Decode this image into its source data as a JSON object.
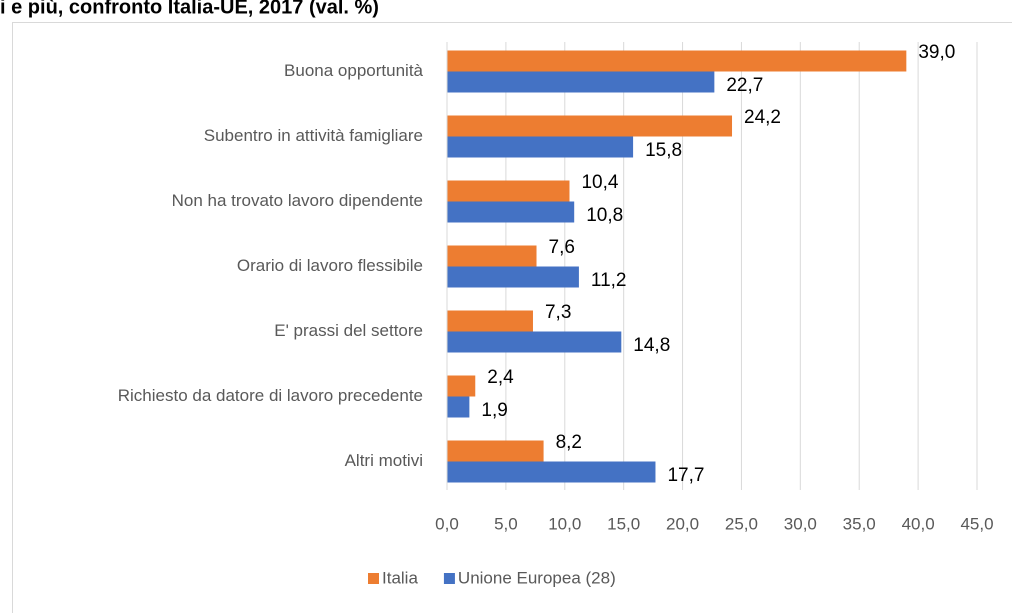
{
  "chart_data": {
    "type": "bar",
    "orientation": "horizontal",
    "title": "i e più, confronto Italia-UE, 2017 (val. %)",
    "categories": [
      "Buona opportunità",
      "Subentro in attività famigliare",
      "Non ha trovato lavoro dipendente",
      "Orario di lavoro flessibile",
      "E' prassi del settore",
      "Richiesto da datore di lavoro precedente",
      "Altri motivi"
    ],
    "series": [
      {
        "name": "Italia",
        "color": "#ED7D31",
        "values": [
          39.0,
          24.2,
          10.4,
          7.6,
          7.3,
          2.4,
          8.2
        ],
        "value_labels": [
          "39,0",
          "24,2",
          "10,4",
          "7,6",
          "7,3",
          "2,4",
          "8,2"
        ]
      },
      {
        "name": "Unione Europea (28)",
        "color": "#4472C4",
        "values": [
          22.7,
          15.8,
          10.8,
          11.2,
          14.8,
          1.9,
          17.7
        ],
        "value_labels": [
          "22,7",
          "15,8",
          "10,8",
          "11,2",
          "14,8",
          "1,9",
          "17,7"
        ]
      }
    ],
    "xlim": [
      0,
      45
    ],
    "xticks": [
      {
        "value": 0,
        "label": "0,0"
      },
      {
        "value": 5,
        "label": "5,0"
      },
      {
        "value": 10,
        "label": "10,0"
      },
      {
        "value": 15,
        "label": "15,0"
      },
      {
        "value": 20,
        "label": "20,0"
      },
      {
        "value": 25,
        "label": "25,0"
      },
      {
        "value": 30,
        "label": "30,0"
      },
      {
        "value": 35,
        "label": "35,0"
      },
      {
        "value": 40,
        "label": "40,0"
      },
      {
        "value": 45,
        "label": "45,0"
      }
    ],
    "grid": true,
    "legend": "bottom"
  }
}
